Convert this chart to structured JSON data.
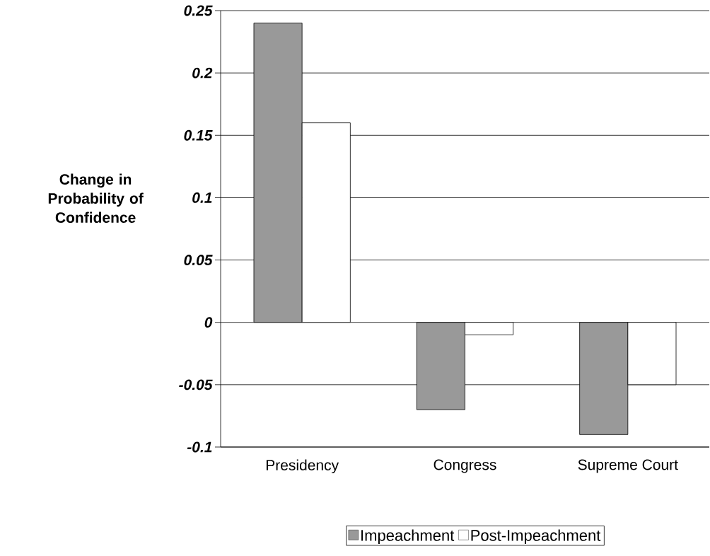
{
  "chart_data": {
    "type": "bar",
    "ylabel": "Change in Probability of Confidence",
    "categories": [
      "Presidency",
      "Congress",
      "Supreme Court"
    ],
    "series": [
      {
        "name": "Impeachment",
        "color": "#999999",
        "values": [
          0.24,
          -0.07,
          -0.09
        ]
      },
      {
        "name": "Post-Impeachment",
        "color": "#ffffff",
        "values": [
          0.16,
          -0.01,
          -0.05
        ]
      }
    ],
    "ylim": [
      -0.1,
      0.25
    ],
    "yticks": [
      -0.1,
      -0.05,
      0,
      0.05,
      0.1,
      0.15,
      0.2,
      0.25
    ],
    "grid": "y",
    "legend": "bottom"
  }
}
